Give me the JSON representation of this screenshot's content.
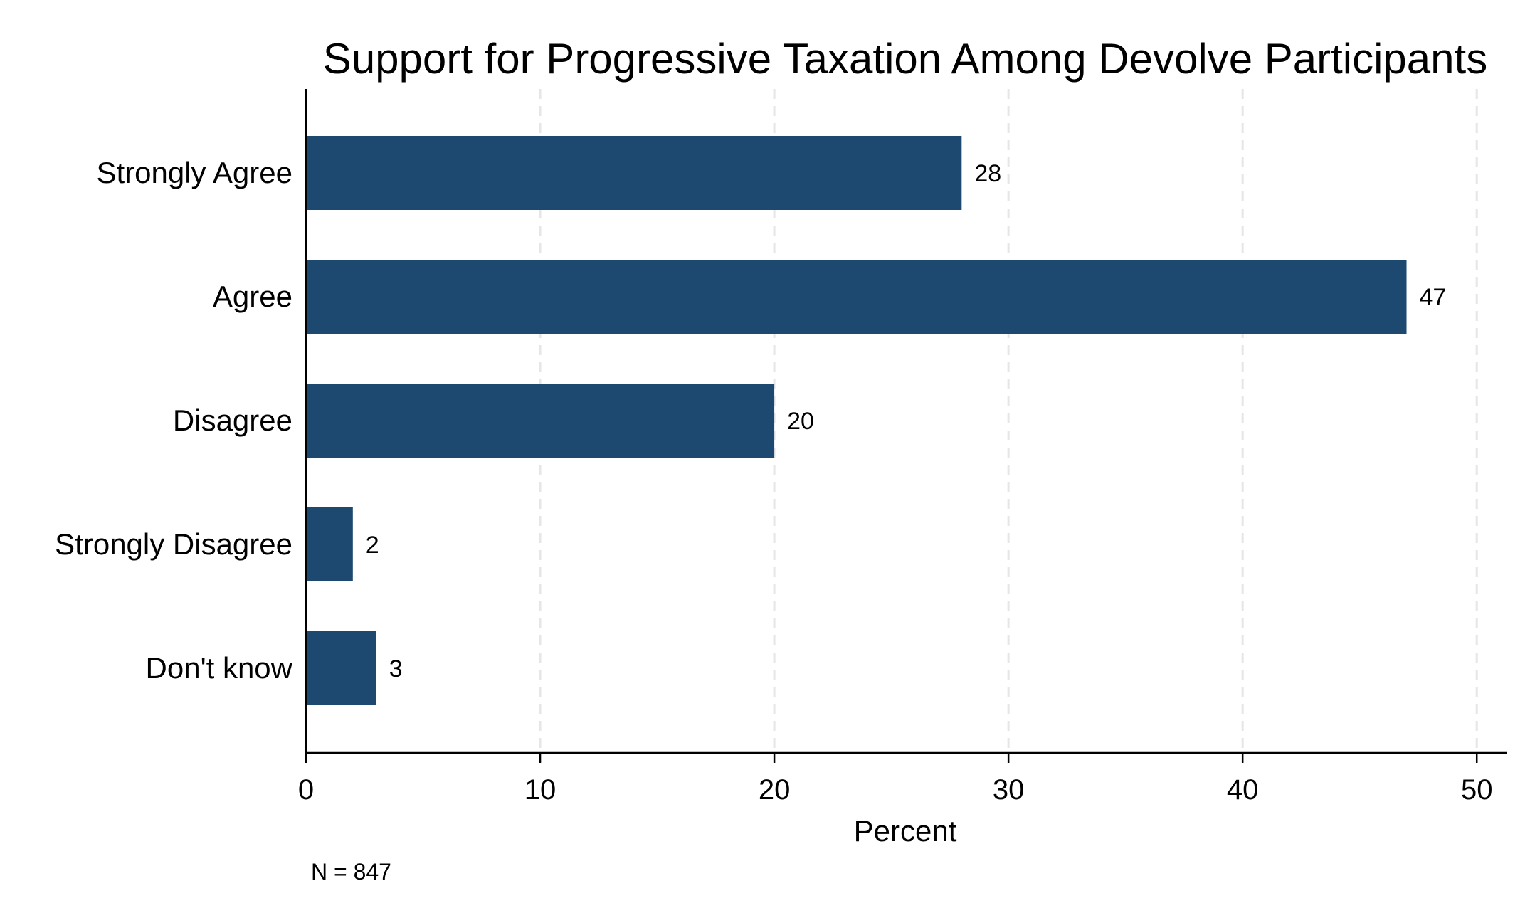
{
  "chart_data": {
    "type": "bar",
    "orientation": "horizontal",
    "title": "Support for Progressive Taxation Among Devolve Participants",
    "categories": [
      "Strongly Agree",
      "Agree",
      "Disagree",
      "Strongly Disagree",
      "Don't know"
    ],
    "values": [
      28,
      47,
      20,
      2,
      3
    ],
    "data_labels": [
      "28",
      "47",
      "20",
      "2",
      "3"
    ],
    "xlabel": "Percent",
    "ylabel": "",
    "xlim": [
      0,
      51.3
    ],
    "xticks": [
      0,
      10,
      20,
      30,
      40,
      50
    ],
    "xtick_labels": [
      "0",
      "10",
      "20",
      "30",
      "40",
      "50"
    ],
    "grid": "vertical dashed",
    "bar_color": "#1d486f",
    "grid_color": "#e6e6e6",
    "note": "N = 847"
  }
}
